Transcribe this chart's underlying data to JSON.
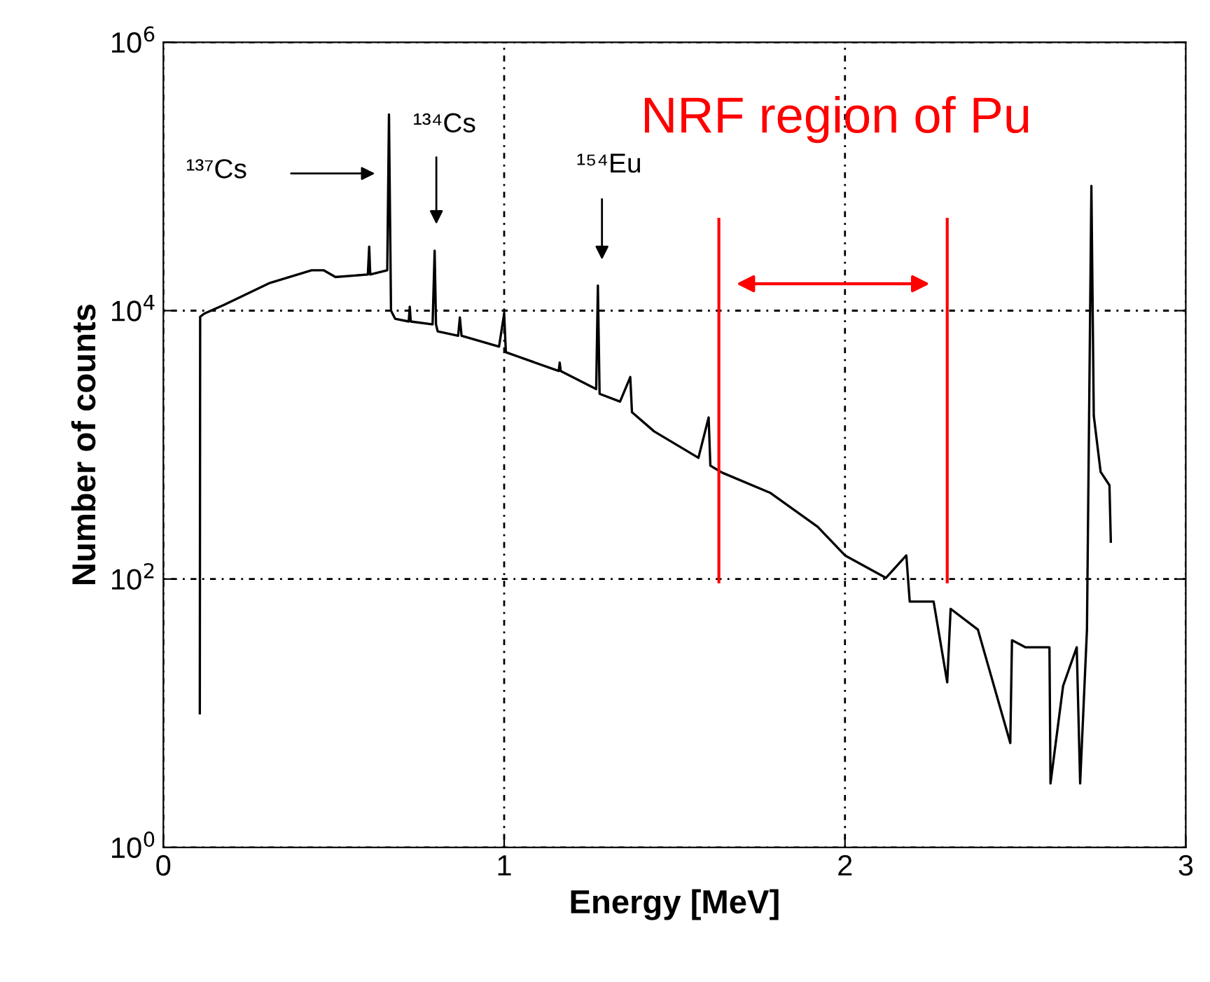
{
  "chart_data": {
    "type": "line",
    "xlabel": "Energy [MeV]",
    "ylabel": "Number of counts",
    "log": "y",
    "grid": true,
    "line_style": "solid",
    "marker": "none",
    "xlim": [
      0,
      3
    ],
    "xticks": [
      0,
      1,
      2,
      3
    ],
    "ylim": [
      1,
      1000000
    ],
    "yticks": [
      {
        "value": 1,
        "label": "10$^{0}$"
      },
      {
        "value": 100,
        "label": "10$^{2}$"
      },
      {
        "value": 10000,
        "label": "10$^{4}$"
      },
      {
        "value": 1000000,
        "label": "10$^{6}$"
      }
    ],
    "series": [
      {
        "color": "#000000",
        "x": [
          0.107,
          0.108,
          0.12,
          0.177,
          0.31,
          0.435,
          0.47,
          0.505,
          0.6,
          0.604,
          0.607,
          0.657,
          0.662,
          0.668,
          0.68,
          0.72,
          0.723,
          0.726,
          0.79,
          0.796,
          0.8,
          0.805,
          0.865,
          0.87,
          0.875,
          0.985,
          1.0,
          1.005,
          1.16,
          1.163,
          1.166,
          1.27,
          1.275,
          1.28,
          1.34,
          1.37,
          1.375,
          1.44,
          1.57,
          1.6,
          1.605,
          1.64,
          1.78,
          1.92,
          2.0,
          2.12,
          2.18,
          2.19,
          2.26,
          2.3,
          2.31,
          2.39,
          2.485,
          2.49,
          2.53,
          2.6,
          2.603,
          2.64,
          2.68,
          2.69,
          2.71,
          2.723,
          2.73,
          2.75,
          2.776,
          2.78
        ],
        "values": [
          10,
          9000,
          9500,
          11000,
          16000,
          20000,
          20000,
          17800,
          18600,
          30000,
          18600,
          20000,
          290000,
          10000,
          8700,
          8300,
          10700,
          8300,
          7900,
          28000,
          7900,
          7000,
          6500,
          8900,
          6500,
          5400,
          9500,
          4900,
          3550,
          4100,
          3550,
          2600,
          15400,
          2400,
          2100,
          3200,
          1750,
          1260,
          800,
          1600,
          700,
          620,
          440,
          245,
          150,
          102,
          150,
          68,
          68,
          17,
          60,
          42,
          6,
          35,
          31,
          31,
          3,
          16,
          31,
          3,
          42,
          85000,
          1650,
          630,
          500,
          190
        ]
      }
    ],
    "annotations": [
      "¹³⁷Cs",
      "¹³⁴Cs",
      "¹⁵⁴Eu",
      "NRF region of Pu"
    ],
    "ref_lines": [
      {
        "axis": "x",
        "value": 1.63,
        "color": "#ff0000"
      },
      {
        "axis": "x",
        "value": 2.3,
        "color": "#ff0000"
      }
    ]
  }
}
